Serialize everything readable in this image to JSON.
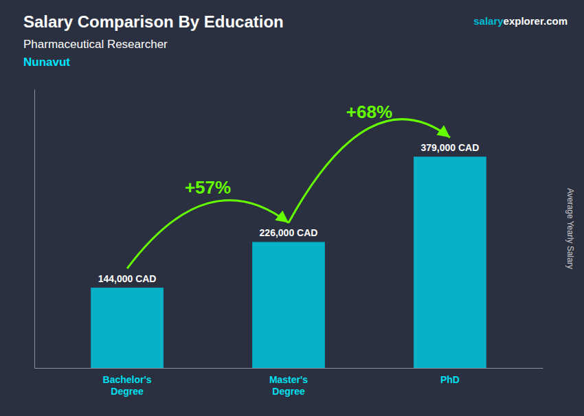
{
  "chart_data": {
    "type": "bar",
    "title": "Salary Comparison By Education",
    "subtitle": "Pharmaceutical Researcher",
    "location": "Nunavut",
    "ylabel": "Average Yearly Salary",
    "categories": [
      "Bachelor's\nDegree",
      "Master's\nDegree",
      "PhD"
    ],
    "values": [
      144000,
      226000,
      379000
    ],
    "value_labels": [
      "144,000 CAD",
      "226,000 CAD",
      "379,000 CAD"
    ],
    "data_labels": true,
    "color": "#00c8e0",
    "ylim": [
      0,
      500000
    ],
    "tick_labels": "x",
    "grid": false,
    "annotations": [
      {
        "text": "+57%",
        "color": "#66ff00"
      },
      {
        "text": "+68%",
        "color": "#66ff00"
      }
    ],
    "brand": [
      {
        "text": "salary",
        "color": "#00bcd4"
      },
      {
        "text": "explorer",
        "color": "#ffffff"
      },
      {
        "text": ".com",
        "color": "#ffffff"
      }
    ]
  }
}
